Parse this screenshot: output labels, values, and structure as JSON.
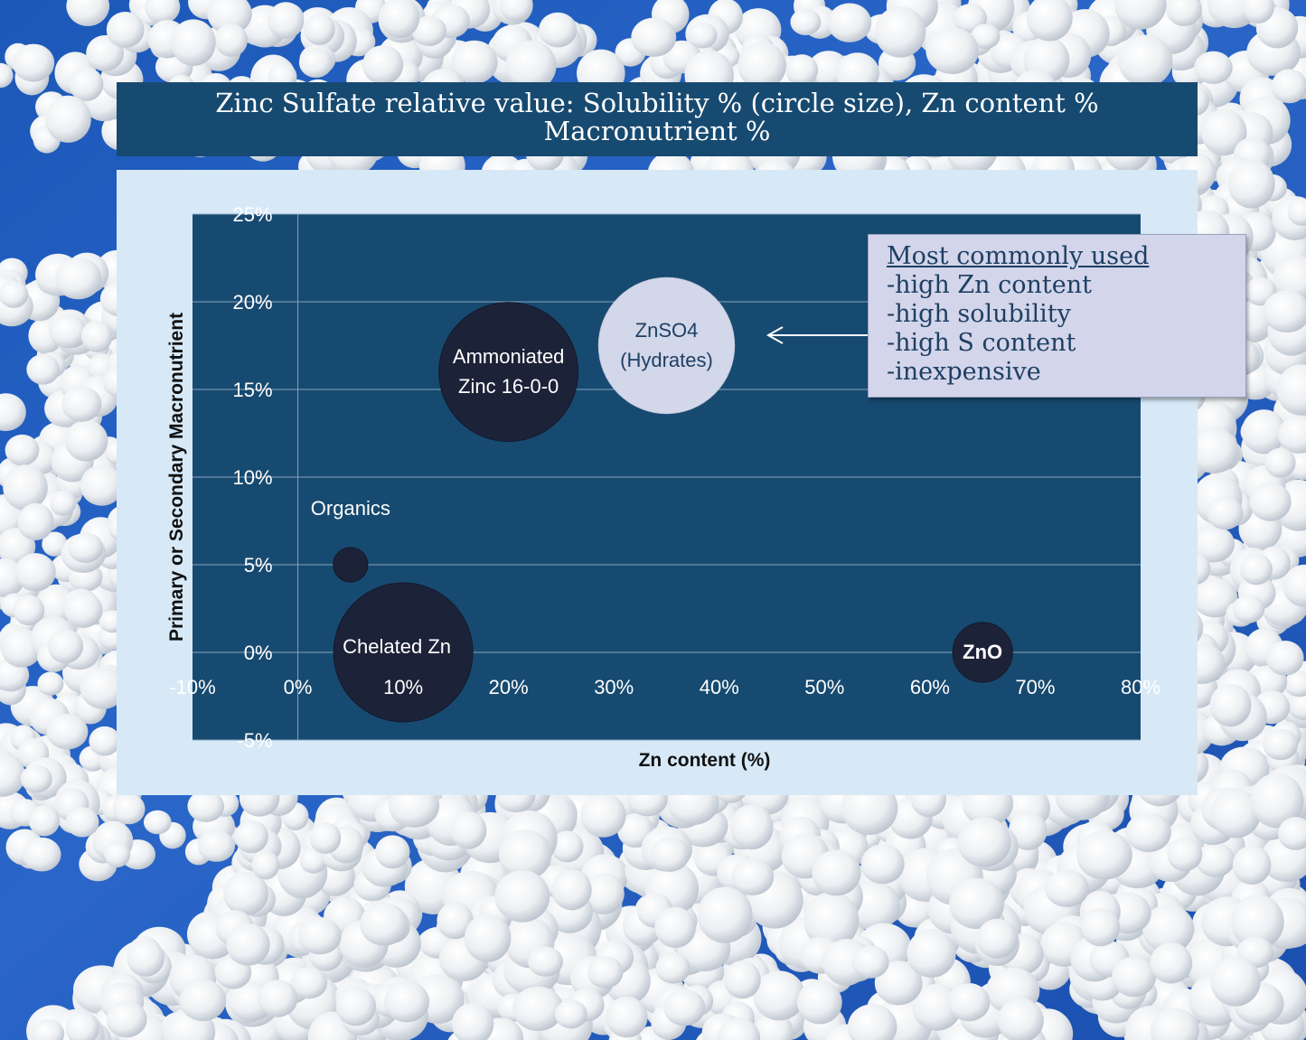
{
  "title": {
    "line1": "Zinc Sulfate relative value: Solubility % (circle size), Zn content %",
    "line2": "Macronutrient %"
  },
  "callout": {
    "heading": "Most commonly used",
    "items": [
      "-high Zn content",
      "-high solubility",
      "-high S content",
      "-inexpensive"
    ]
  },
  "colors": {
    "plot_bg": "#174a70",
    "banner_bg": "#174a70",
    "panel_bg": "#d7e9f7",
    "dark_bubble": "#1c2237",
    "light_bubble": "#d3d7ea",
    "callout_bg": "#d3d5ea",
    "callout_text": "#1e3f63"
  },
  "chart_data": {
    "type": "bubble",
    "xlabel": "Zn content (%)",
    "ylabel": "Primary or Secondary Macronutrient",
    "xlim": [
      -10,
      80
    ],
    "ylim": [
      -5,
      25
    ],
    "xticks": [
      -10,
      0,
      10,
      20,
      30,
      40,
      50,
      60,
      70,
      80
    ],
    "yticks": [
      -5,
      0,
      5,
      10,
      15,
      20,
      25
    ],
    "xtick_labels": [
      "-10%",
      "0%",
      "10%",
      "20%",
      "30%",
      "40%",
      "50%",
      "60%",
      "70%",
      "80%"
    ],
    "ytick_labels": [
      "-5%",
      "0%",
      "5%",
      "10%",
      "15%",
      "20%",
      "25%"
    ],
    "grid": "horizontal",
    "bubble_size_meaning": "Solubility %",
    "points": [
      {
        "label": "Organics",
        "x": 5,
        "y": 5,
        "size": 4,
        "style": "dark",
        "label_lines": [
          "Organics"
        ],
        "label_pos": "above"
      },
      {
        "label": "Chelated Zn",
        "x": 10,
        "y": 0,
        "size": 65,
        "style": "dark",
        "label_lines": [
          "Chelated Zn"
        ],
        "label_pos": "center"
      },
      {
        "label": "Ammoniated Zinc 16-0-0",
        "x": 20,
        "y": 16,
        "size": 65,
        "style": "dark",
        "label_lines": [
          "Ammoniated",
          "Zinc 16-0-0"
        ],
        "label_pos": "center"
      },
      {
        "label": "ZnSO4 (Hydrates)",
        "x": 35,
        "y": 17.5,
        "size": 62,
        "style": "light",
        "label_lines": [
          "ZnSO4",
          "(Hydrates)"
        ],
        "label_pos": "center"
      },
      {
        "label": "ZnO",
        "x": 65,
        "y": 0,
        "size": 12,
        "style": "dark",
        "label_lines": [
          "ZnO"
        ],
        "label_pos": "center",
        "bold": true
      }
    ]
  }
}
